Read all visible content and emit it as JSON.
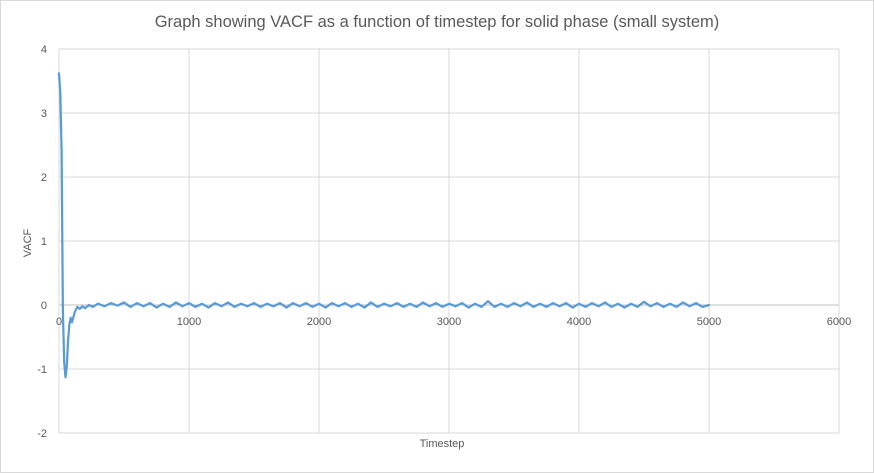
{
  "chart_data": {
    "type": "line",
    "title": "Graph showing VACF as a function of timestep for solid phase (small system)",
    "xlabel": "Timestep",
    "ylabel": "VACF",
    "xlim": [
      0,
      6000
    ],
    "ylim": [
      -2,
      4
    ],
    "x_ticks": [
      "0",
      "1000",
      "2000",
      "3000",
      "4000",
      "5000",
      "6000"
    ],
    "y_ticks": [
      "-2",
      "-1",
      "0",
      "1",
      "2",
      "3",
      "4"
    ],
    "grid": true,
    "legend": "none",
    "series_color": "#5b9bd5",
    "series": [
      {
        "x": [
          0,
          10,
          20,
          25,
          30,
          40,
          50,
          60,
          70,
          80,
          90,
          100,
          120,
          140,
          160,
          180,
          200,
          230,
          260,
          300,
          350,
          400,
          450,
          500,
          550,
          600,
          650,
          700,
          750,
          800,
          850,
          900,
          950,
          1000,
          1050,
          1100,
          1150,
          1200,
          1250,
          1300,
          1350,
          1400,
          1450,
          1500,
          1550,
          1600,
          1650,
          1700,
          1750,
          1800,
          1850,
          1900,
          1950,
          2000,
          2050,
          2100,
          2150,
          2200,
          2250,
          2300,
          2350,
          2400,
          2450,
          2500,
          2550,
          2600,
          2650,
          2700,
          2750,
          2800,
          2850,
          2900,
          2950,
          3000,
          3050,
          3100,
          3150,
          3200,
          3250,
          3300,
          3350,
          3400,
          3450,
          3500,
          3550,
          3600,
          3650,
          3700,
          3750,
          3800,
          3850,
          3900,
          3950,
          4000,
          4050,
          4100,
          4150,
          4200,
          4250,
          4300,
          4350,
          4400,
          4450,
          4500,
          4550,
          4600,
          4650,
          4700,
          4750,
          4800,
          4850,
          4900,
          4950,
          5000
        ],
        "y": [
          3.62,
          3.3,
          2.4,
          1.1,
          -0.1,
          -0.9,
          -1.13,
          -0.95,
          -0.55,
          -0.3,
          -0.2,
          -0.27,
          -0.12,
          -0.03,
          -0.06,
          -0.02,
          -0.05,
          0.0,
          -0.03,
          0.02,
          -0.02,
          0.03,
          -0.01,
          0.04,
          -0.03,
          0.03,
          -0.02,
          0.03,
          -0.04,
          0.02,
          -0.03,
          0.04,
          -0.02,
          0.03,
          -0.03,
          0.02,
          -0.04,
          0.03,
          -0.02,
          0.04,
          -0.03,
          0.02,
          -0.02,
          0.03,
          -0.03,
          0.02,
          -0.02,
          0.03,
          -0.04,
          0.03,
          -0.02,
          0.03,
          -0.03,
          0.02,
          -0.04,
          0.03,
          -0.02,
          0.03,
          -0.03,
          0.02,
          -0.04,
          0.04,
          -0.03,
          0.02,
          -0.02,
          0.03,
          -0.03,
          0.02,
          -0.03,
          0.04,
          -0.02,
          0.03,
          -0.03,
          0.02,
          -0.02,
          0.03,
          -0.04,
          0.02,
          -0.03,
          0.06,
          -0.03,
          0.02,
          -0.03,
          0.03,
          -0.02,
          0.04,
          -0.03,
          0.02,
          -0.03,
          0.03,
          -0.02,
          0.03,
          -0.04,
          0.02,
          -0.03,
          0.03,
          -0.02,
          0.04,
          -0.03,
          0.02,
          -0.04,
          0.02,
          -0.03,
          0.05,
          -0.02,
          0.03,
          -0.03,
          0.02,
          -0.03,
          0.04,
          -0.02,
          0.03,
          -0.03,
          0.0
        ]
      }
    ]
  }
}
